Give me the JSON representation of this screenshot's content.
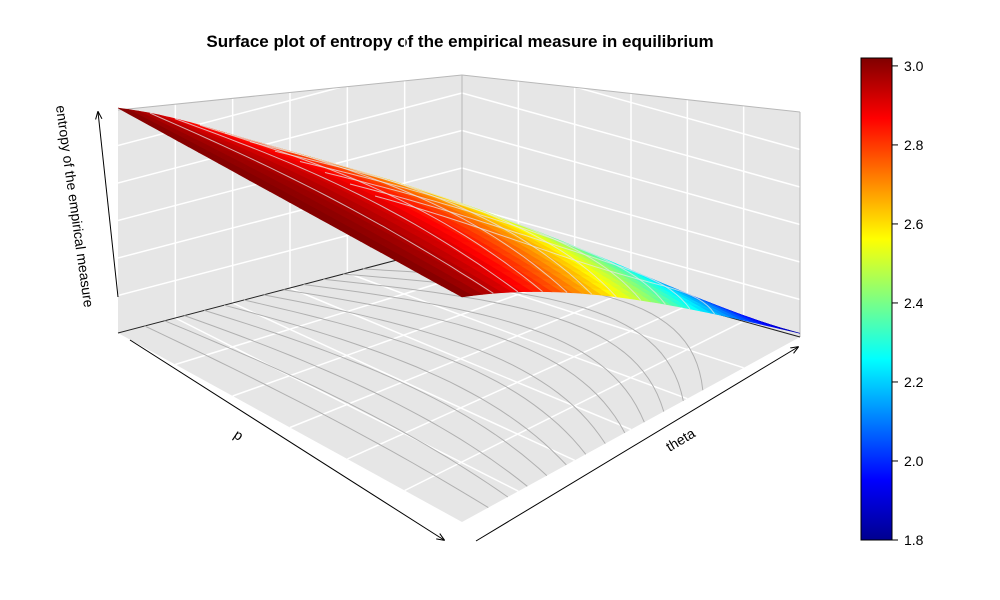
{
  "chart_data": {
    "type": "surface3d",
    "title": "Surface plot of entropy of the empirical measure in equilibrium",
    "xlabel": "p",
    "ylabel": "theta",
    "zlabel": "entropy of the empirical measure",
    "zlim": [
      1.8,
      3.02
    ],
    "grid": true,
    "surface_model": {
      "description": "estimated shape: entropy falls with theta and peaks at mid p",
      "max": 3.02,
      "min": 1.82
    },
    "colorbar": {
      "position": "right",
      "ticks": [
        "1.8",
        "2.0",
        "2.2",
        "2.4",
        "2.6",
        "2.8",
        "3.0"
      ],
      "range": [
        1.8,
        3.02
      ],
      "palette": [
        "#00008f",
        "#0000ff",
        "#0080ff",
        "#00ffff",
        "#80ff80",
        "#ffff00",
        "#ff8000",
        "#ff0000",
        "#800000"
      ]
    }
  }
}
